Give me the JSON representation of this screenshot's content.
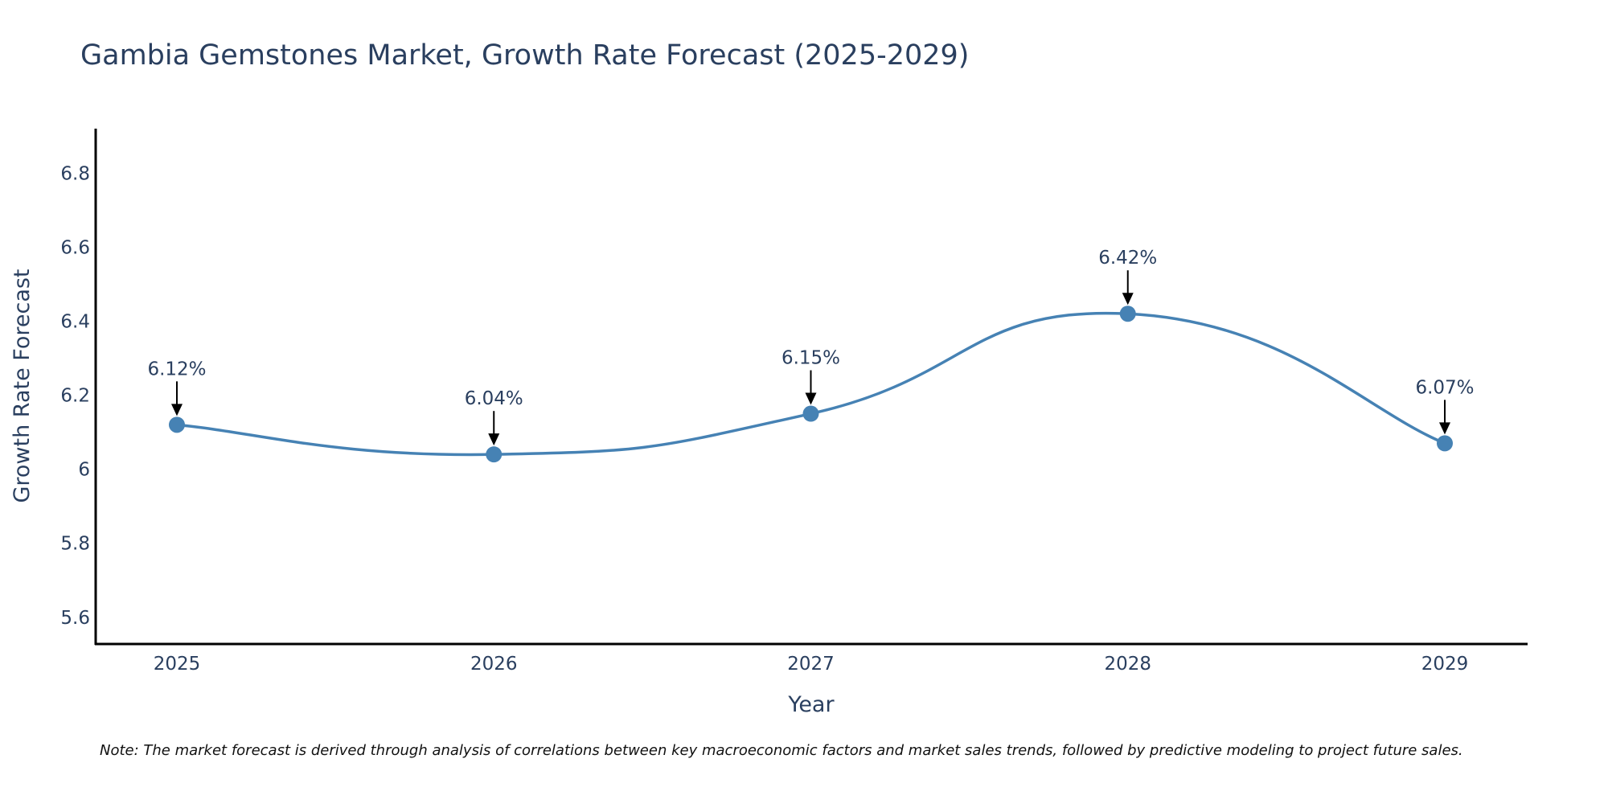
{
  "chart_data": {
    "type": "line",
    "title": "Gambia Gemstones Market, Growth Rate Forecast (2025-2029)",
    "xlabel": "Year",
    "ylabel": "Growth Rate Forecast",
    "categories": [
      "2025",
      "2026",
      "2027",
      "2028",
      "2029"
    ],
    "series": [
      {
        "name": "Growth Rate Forecast",
        "values": [
          6.12,
          6.04,
          6.15,
          6.42,
          6.07
        ],
        "labels": [
          "6.12%",
          "6.04%",
          "6.15%",
          "6.42%",
          "6.07%"
        ]
      }
    ],
    "y_ticks": [
      5.6,
      5.8,
      6,
      6.2,
      6.4,
      6.6,
      6.8
    ],
    "y_tick_labels": [
      "5.6",
      "5.8",
      "6",
      "6.2",
      "6.4",
      "6.6",
      "6.8"
    ],
    "ylim": [
      5.53,
      6.92
    ],
    "grid": false,
    "line_color": "#4682b4",
    "note": "Note: The market forecast is derived through analysis of correlations between key macroeconomic factors and market sales trends, followed by predictive modeling to project future sales."
  }
}
